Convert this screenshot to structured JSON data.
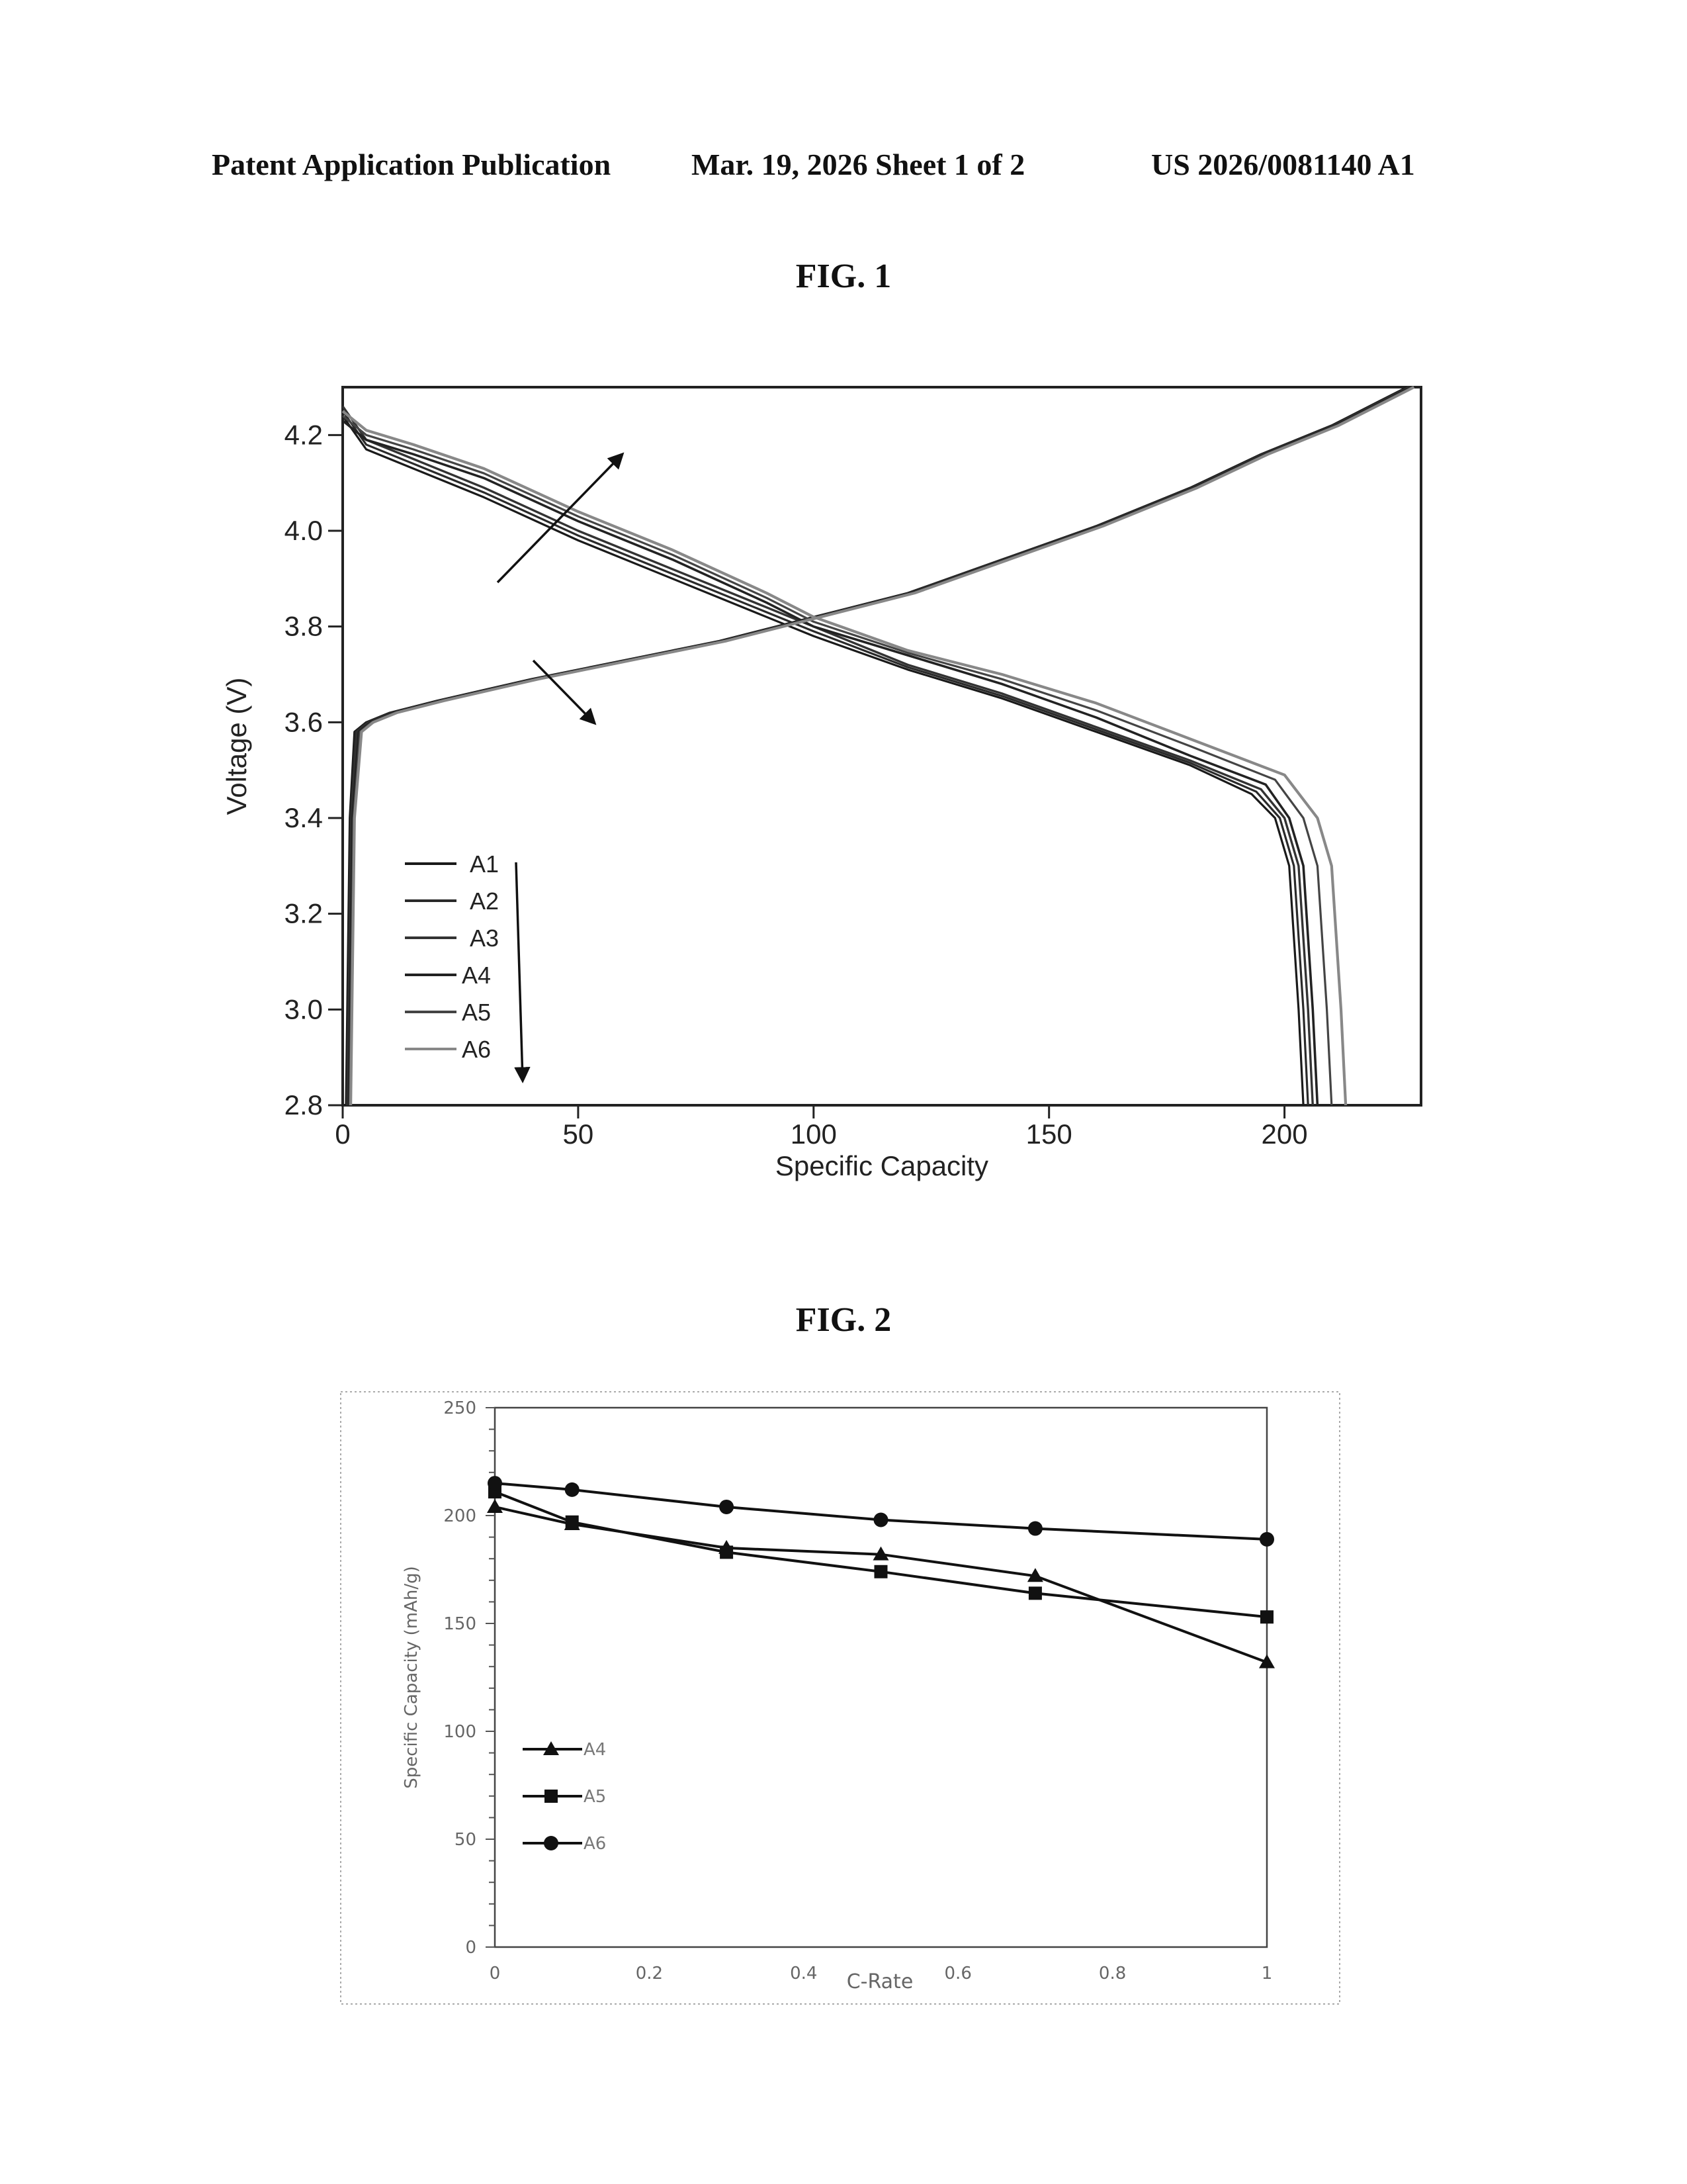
{
  "header": {
    "publication": "Patent Application Publication",
    "date_sheet": "Mar. 19, 2026  Sheet 1 of 2",
    "number": "US 2026/0081140 A1"
  },
  "figures": [
    {
      "label": "FIG. 1"
    },
    {
      "label": "FIG. 2"
    }
  ],
  "chart_data": [
    {
      "type": "line",
      "title": "FIG. 1",
      "xlabel": "Specific Capacity",
      "ylabel": "Voltage (V)",
      "xlim": [
        0,
        229
      ],
      "ylim": [
        2.8,
        4.3
      ],
      "x_ticks": [
        "0",
        "50",
        "100",
        "150",
        "200"
      ],
      "y_ticks": [
        "4.2",
        "4.0",
        "3.8",
        "3.6",
        "3.4",
        "3.2",
        "3.0",
        "2.8"
      ],
      "legend": [
        "A1",
        "A2",
        "A3",
        "A4",
        "A5",
        "A6"
      ],
      "series": [
        {
          "name": "A1",
          "charge": [
            [
              0.7,
              2.8
            ],
            [
              1.5,
              3.4
            ],
            [
              2.5,
              3.58
            ],
            [
              5,
              3.6
            ],
            [
              10,
              3.62
            ],
            [
              20,
              3.645
            ],
            [
              40,
              3.69
            ],
            [
              60,
              3.73
            ],
            [
              80,
              3.77
            ],
            [
              100,
              3.82
            ],
            [
              120,
              3.87
            ],
            [
              140,
              3.94
            ],
            [
              160,
              4.01
            ],
            [
              180,
              4.09
            ],
            [
              195,
              4.16
            ],
            [
              210,
              4.22
            ],
            [
              220,
              4.27
            ],
            [
              226,
              4.3
            ]
          ],
          "discharge": [
            [
              0,
              4.24
            ],
            [
              5,
              4.17
            ],
            [
              15,
              4.13
            ],
            [
              30,
              4.07
            ],
            [
              50,
              3.98
            ],
            [
              70,
              3.9
            ],
            [
              90,
              3.82
            ],
            [
              100,
              3.78
            ],
            [
              120,
              3.71
            ],
            [
              140,
              3.65
            ],
            [
              160,
              3.58
            ],
            [
              180,
              3.51
            ],
            [
              193,
              3.45
            ],
            [
              198,
              3.4
            ],
            [
              201,
              3.3
            ],
            [
              203,
              3.0
            ],
            [
              204,
              2.8
            ]
          ]
        },
        {
          "name": "A2",
          "charge": [
            [
              0.9,
              2.8
            ],
            [
              1.7,
              3.4
            ],
            [
              2.8,
              3.58
            ],
            [
              5.3,
              3.6
            ],
            [
              10.3,
              3.62
            ],
            [
              20.3,
              3.645
            ],
            [
              40.3,
              3.69
            ],
            [
              60.3,
              3.73
            ],
            [
              80.3,
              3.77
            ],
            [
              100.3,
              3.82
            ],
            [
              120.3,
              3.87
            ],
            [
              140.3,
              3.94
            ],
            [
              160.3,
              4.01
            ],
            [
              180.3,
              4.09
            ],
            [
              195.3,
              4.16
            ],
            [
              210.3,
              4.22
            ],
            [
              220.3,
              4.27
            ],
            [
              226.3,
              4.3
            ]
          ],
          "discharge": [
            [
              0,
              4.25
            ],
            [
              5,
              4.18
            ],
            [
              15,
              4.14
            ],
            [
              30,
              4.08
            ],
            [
              50,
              3.99
            ],
            [
              70,
              3.91
            ],
            [
              90,
              3.83
            ],
            [
              100,
              3.79
            ],
            [
              120,
              3.715
            ],
            [
              140,
              3.655
            ],
            [
              160,
              3.585
            ],
            [
              180,
              3.515
            ],
            [
              194,
              3.455
            ],
            [
              199,
              3.4
            ],
            [
              202,
              3.3
            ],
            [
              204,
              3.0
            ],
            [
              205,
              2.8
            ]
          ]
        },
        {
          "name": "A3",
          "charge": [
            [
              1.1,
              2.8
            ],
            [
              1.9,
              3.4
            ],
            [
              3.1,
              3.58
            ],
            [
              5.6,
              3.6
            ],
            [
              10.6,
              3.62
            ],
            [
              20.6,
              3.645
            ],
            [
              40.6,
              3.69
            ],
            [
              60.6,
              3.73
            ],
            [
              80.6,
              3.77
            ],
            [
              100.6,
              3.82
            ],
            [
              120.6,
              3.87
            ],
            [
              140.6,
              3.94
            ],
            [
              160.6,
              4.01
            ],
            [
              180.6,
              4.09
            ],
            [
              195.6,
              4.16
            ],
            [
              210.6,
              4.22
            ],
            [
              220.6,
              4.27
            ],
            [
              226.6,
              4.3
            ]
          ],
          "discharge": [
            [
              0,
              4.26
            ],
            [
              5,
              4.19
            ],
            [
              15,
              4.15
            ],
            [
              30,
              4.09
            ],
            [
              50,
              4.0
            ],
            [
              70,
              3.92
            ],
            [
              90,
              3.84
            ],
            [
              100,
              3.8
            ],
            [
              120,
              3.72
            ],
            [
              140,
              3.66
            ],
            [
              160,
              3.59
            ],
            [
              180,
              3.52
            ],
            [
              195,
              3.46
            ],
            [
              200,
              3.4
            ],
            [
              203,
              3.3
            ],
            [
              205,
              3.0
            ],
            [
              206,
              2.8
            ]
          ]
        },
        {
          "name": "A4",
          "charge": [
            [
              1.3,
              2.8
            ],
            [
              2.1,
              3.4
            ],
            [
              3.4,
              3.58
            ],
            [
              5.9,
              3.6
            ],
            [
              10.9,
              3.62
            ],
            [
              20.9,
              3.645
            ],
            [
              40.9,
              3.69
            ],
            [
              60.9,
              3.73
            ],
            [
              80.9,
              3.77
            ],
            [
              100.9,
              3.82
            ],
            [
              120.9,
              3.87
            ],
            [
              140.9,
              3.94
            ],
            [
              160.9,
              4.01
            ],
            [
              180.9,
              4.09
            ],
            [
              195.9,
              4.16
            ],
            [
              210.9,
              4.22
            ],
            [
              220.9,
              4.27
            ],
            [
              226.9,
              4.3
            ]
          ],
          "discharge": [
            [
              0,
              4.23
            ],
            [
              5,
              4.19
            ],
            [
              15,
              4.16
            ],
            [
              30,
              4.11
            ],
            [
              50,
              4.02
            ],
            [
              70,
              3.94
            ],
            [
              90,
              3.85
            ],
            [
              100,
              3.8
            ],
            [
              120,
              3.74
            ],
            [
              140,
              3.68
            ],
            [
              160,
              3.61
            ],
            [
              180,
              3.53
            ],
            [
              196,
              3.47
            ],
            [
              201,
              3.4
            ],
            [
              204,
              3.3
            ],
            [
              206,
              3.0
            ],
            [
              207,
              2.8
            ]
          ]
        },
        {
          "name": "A5",
          "charge": [
            [
              1.5,
              2.8
            ],
            [
              2.3,
              3.4
            ],
            [
              3.7,
              3.58
            ],
            [
              6.2,
              3.6
            ],
            [
              11.2,
              3.62
            ],
            [
              21.2,
              3.645
            ],
            [
              41.2,
              3.69
            ],
            [
              61.2,
              3.73
            ],
            [
              81.2,
              3.77
            ],
            [
              101.2,
              3.82
            ],
            [
              121.2,
              3.87
            ],
            [
              141.2,
              3.94
            ],
            [
              161.2,
              4.01
            ],
            [
              181.2,
              4.09
            ],
            [
              196.2,
              4.16
            ],
            [
              211.2,
              4.22
            ],
            [
              221.2,
              4.27
            ],
            [
              227.2,
              4.3
            ]
          ],
          "discharge": [
            [
              0,
              4.24
            ],
            [
              5,
              4.2
            ],
            [
              15,
              4.17
            ],
            [
              30,
              4.12
            ],
            [
              50,
              4.03
            ],
            [
              70,
              3.95
            ],
            [
              90,
              3.86
            ],
            [
              100,
              3.81
            ],
            [
              120,
              3.745
            ],
            [
              140,
              3.69
            ],
            [
              160,
              3.625
            ],
            [
              180,
              3.55
            ],
            [
              198,
              3.48
            ],
            [
              204,
              3.4
            ],
            [
              207,
              3.3
            ],
            [
              209,
              3.0
            ],
            [
              210,
              2.8
            ]
          ]
        },
        {
          "name": "A6",
          "charge": [
            [
              1.7,
              2.8
            ],
            [
              2.5,
              3.4
            ],
            [
              4.0,
              3.58
            ],
            [
              6.5,
              3.6
            ],
            [
              11.5,
              3.62
            ],
            [
              21.5,
              3.645
            ],
            [
              41.5,
              3.69
            ],
            [
              61.5,
              3.73
            ],
            [
              81.5,
              3.77
            ],
            [
              101.5,
              3.82
            ],
            [
              121.5,
              3.87
            ],
            [
              141.5,
              3.94
            ],
            [
              161.5,
              4.01
            ],
            [
              181.5,
              4.09
            ],
            [
              196.5,
              4.16
            ],
            [
              211.5,
              4.22
            ],
            [
              221.5,
              4.27
            ],
            [
              227.5,
              4.3
            ]
          ],
          "discharge": [
            [
              0,
              4.25
            ],
            [
              5,
              4.21
            ],
            [
              15,
              4.18
            ],
            [
              30,
              4.13
            ],
            [
              50,
              4.04
            ],
            [
              70,
              3.96
            ],
            [
              90,
              3.87
            ],
            [
              100,
              3.82
            ],
            [
              120,
              3.75
            ],
            [
              140,
              3.7
            ],
            [
              160,
              3.64
            ],
            [
              180,
              3.565
            ],
            [
              200,
              3.49
            ],
            [
              207,
              3.4
            ],
            [
              210,
              3.3
            ],
            [
              212,
              3.0
            ],
            [
              213,
              2.8
            ]
          ]
        }
      ]
    },
    {
      "type": "line",
      "title": "FIG. 2",
      "xlabel": "C-Rate",
      "ylabel": "Specific Capacity (mAh/g)",
      "xlim": [
        0,
        1
      ],
      "ylim": [
        0,
        250
      ],
      "x_ticks": [
        "0",
        "0.2",
        "0.4",
        "0.6",
        "0.8",
        "1"
      ],
      "y_ticks": [
        "250",
        "200",
        "150",
        "100",
        "50",
        "0"
      ],
      "x": [
        0,
        0.1,
        0.3,
        0.5,
        0.7,
        1
      ],
      "series": [
        {
          "name": "A4",
          "marker": "triangle",
          "values": [
            204,
            196,
            185,
            182,
            172,
            132
          ]
        },
        {
          "name": "A5",
          "marker": "square",
          "values": [
            211,
            197,
            183,
            174,
            164,
            153
          ]
        },
        {
          "name": "A6",
          "marker": "circle",
          "values": [
            215,
            212,
            204,
            198,
            194,
            189
          ]
        }
      ]
    }
  ]
}
